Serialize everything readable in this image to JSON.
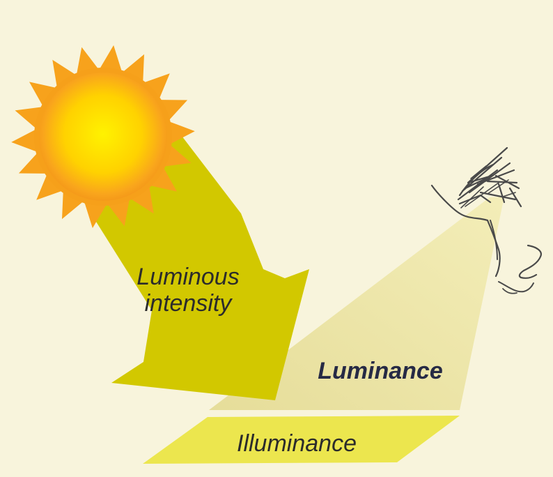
{
  "labels": {
    "luminous_intensity_line1": "Luminous",
    "luminous_intensity_line2": "intensity",
    "luminance": "Luminance",
    "illuminance": "Illuminance"
  },
  "colors": {
    "background": "#f8f4dc",
    "sun_core": "#fff000",
    "sun_rays": "#f7a21c",
    "arrow": "#d2c800",
    "luminance_beam": "#ece5a4",
    "illuminated_surface": "#ece64e",
    "eye_sketch": "#4b4b4b"
  },
  "icons": {
    "source": "sun-icon",
    "observer": "eye-sketch-icon"
  }
}
